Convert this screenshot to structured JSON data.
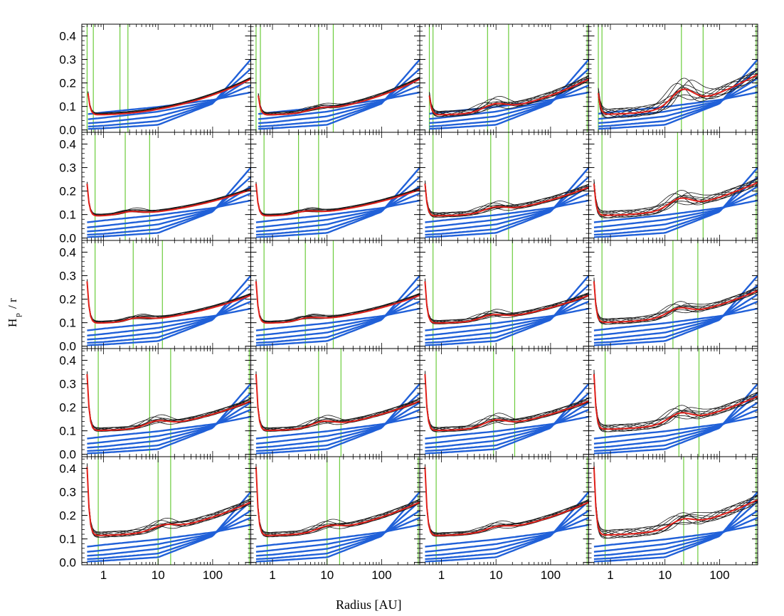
{
  "chart_data": {
    "type": "line",
    "layout": "5x4 grid of panels with shared axes",
    "xlabel": "Radius [AU]",
    "ylabel": {
      "main": "H",
      "sub": "p",
      "rest": " / r"
    },
    "xscale": "log",
    "xlim": [
      0.4,
      500
    ],
    "ylim": [
      -0.01,
      0.45
    ],
    "xticks": [
      1,
      10,
      100
    ],
    "xticklabels": [
      "1",
      "10",
      "100"
    ],
    "yticks": [
      0.0,
      0.1,
      0.2,
      0.3,
      0.4
    ],
    "yticklabels": [
      "0.0",
      "0.1",
      "0.2",
      "0.3",
      "0.4"
    ],
    "series_colors": {
      "models": "#1a1a1a",
      "mean": "#e0201a",
      "reference": "#2060d8",
      "markers": "#6ccc3c"
    },
    "reference_curves": [
      {
        "name": "ref1",
        "r": [
          0.5,
          1,
          10,
          100,
          500
        ],
        "h": [
          0.067,
          0.075,
          0.098,
          0.128,
          0.16
        ]
      },
      {
        "name": "ref2",
        "r": [
          0.5,
          1,
          10,
          100,
          500
        ],
        "h": [
          0.045,
          0.052,
          0.078,
          0.122,
          0.19
        ]
      },
      {
        "name": "ref3",
        "r": [
          0.5,
          1,
          10,
          100,
          500
        ],
        "h": [
          0.028,
          0.033,
          0.058,
          0.118,
          0.22
        ]
      },
      {
        "name": "ref4",
        "r": [
          0.5,
          1,
          10,
          100,
          500
        ],
        "h": [
          0.014,
          0.018,
          0.038,
          0.115,
          0.26
        ]
      },
      {
        "name": "ref5",
        "r": [
          0.5,
          1,
          10,
          100,
          500
        ],
        "h": [
          0.004,
          0.007,
          0.022,
          0.112,
          0.3
        ]
      }
    ],
    "panels": [
      {
        "row": 1,
        "col": 1,
        "inner": 0.52,
        "peak": 0.16,
        "base": 0.068,
        "bump_r": 0,
        "bump_h": 0,
        "spread": 0.004,
        "outer": 0.22,
        "markers": [
          0.5,
          0.65,
          2,
          2.8
        ]
      },
      {
        "row": 1,
        "col": 2,
        "inner": 0.55,
        "peak": 0.15,
        "base": 0.068,
        "bump_r": 7,
        "bump_h": 0.02,
        "spread": 0.006,
        "outer": 0.22,
        "markers": [
          0.5,
          0.6,
          7,
          13
        ]
      },
      {
        "row": 1,
        "col": 3,
        "inner": 0.6,
        "peak": 0.15,
        "base": 0.068,
        "bump_r": 9,
        "bump_h": 0.04,
        "spread": 0.012,
        "outer": 0.22,
        "markers": [
          0.6,
          0.7,
          7,
          17,
          470
        ]
      },
      {
        "row": 1,
        "col": 4,
        "inner": 0.6,
        "peak": 0.16,
        "base": 0.07,
        "bump_r": 20,
        "bump_h": 0.1,
        "spread": 0.02,
        "outer": 0.24,
        "markers": [
          0.6,
          0.7,
          20,
          50,
          470
        ]
      },
      {
        "row": 2,
        "col": 1,
        "inner": 0.5,
        "peak": 0.235,
        "base": 0.098,
        "bump_r": 3,
        "bump_h": 0.02,
        "spread": 0.004,
        "outer": 0.21,
        "markers": [
          0.7,
          2.5,
          7
        ]
      },
      {
        "row": 2,
        "col": 2,
        "inner": 0.5,
        "peak": 0.235,
        "base": 0.098,
        "bump_r": 4,
        "bump_h": 0.02,
        "spread": 0.004,
        "outer": 0.21,
        "markers": [
          0.7,
          3,
          7
        ]
      },
      {
        "row": 2,
        "col": 3,
        "inner": 0.5,
        "peak": 0.235,
        "base": 0.098,
        "bump_r": 9,
        "bump_h": 0.03,
        "spread": 0.01,
        "outer": 0.22,
        "markers": [
          0.7,
          8,
          17
        ]
      },
      {
        "row": 2,
        "col": 4,
        "inner": 0.5,
        "peak": 0.235,
        "base": 0.1,
        "bump_r": 18,
        "bump_h": 0.06,
        "spread": 0.015,
        "outer": 0.24,
        "markers": [
          0.7,
          17,
          50,
          470
        ]
      },
      {
        "row": 3,
        "col": 1,
        "inner": 0.5,
        "peak": 0.28,
        "base": 0.102,
        "bump_r": 4,
        "bump_h": 0.022,
        "spread": 0.005,
        "outer": 0.22,
        "markers": [
          0.7,
          3.5,
          12
        ]
      },
      {
        "row": 3,
        "col": 2,
        "inner": 0.5,
        "peak": 0.28,
        "base": 0.102,
        "bump_r": 4.5,
        "bump_h": 0.022,
        "spread": 0.005,
        "outer": 0.22,
        "markers": [
          0.7,
          4,
          13
        ]
      },
      {
        "row": 3,
        "col": 3,
        "inner": 0.5,
        "peak": 0.28,
        "base": 0.102,
        "bump_r": 8,
        "bump_h": 0.03,
        "spread": 0.008,
        "outer": 0.22,
        "markers": [
          0.7,
          8,
          20
        ]
      },
      {
        "row": 3,
        "col": 4,
        "inner": 0.5,
        "peak": 0.28,
        "base": 0.105,
        "bump_r": 17,
        "bump_h": 0.045,
        "spread": 0.012,
        "outer": 0.24,
        "markers": [
          0.7,
          14,
          40
        ]
      },
      {
        "row": 4,
        "col": 1,
        "inner": 0.5,
        "peak": 0.345,
        "base": 0.105,
        "bump_r": 9,
        "bump_h": 0.035,
        "spread": 0.008,
        "outer": 0.23,
        "markers": [
          0.8,
          7,
          17,
          470
        ]
      },
      {
        "row": 4,
        "col": 2,
        "inner": 0.5,
        "peak": 0.345,
        "base": 0.105,
        "bump_r": 8,
        "bump_h": 0.035,
        "spread": 0.008,
        "outer": 0.23,
        "markers": [
          0.8,
          7,
          18
        ]
      },
      {
        "row": 4,
        "col": 3,
        "inner": 0.5,
        "peak": 0.345,
        "base": 0.105,
        "bump_r": 9,
        "bump_h": 0.04,
        "spread": 0.01,
        "outer": 0.23,
        "markers": [
          0.8,
          9,
          22
        ]
      },
      {
        "row": 4,
        "col": 4,
        "inner": 0.5,
        "peak": 0.345,
        "base": 0.11,
        "bump_r": 18,
        "bump_h": 0.055,
        "spread": 0.015,
        "outer": 0.25,
        "markers": [
          0.8,
          18,
          42
        ]
      },
      {
        "row": 5,
        "col": 1,
        "inner": 0.5,
        "peak": 0.41,
        "base": 0.118,
        "bump_r": 12,
        "bump_h": 0.03,
        "spread": 0.012,
        "outer": 0.26,
        "markers": [
          0.8,
          10,
          17,
          470
        ]
      },
      {
        "row": 5,
        "col": 2,
        "inner": 0.5,
        "peak": 0.41,
        "base": 0.118,
        "bump_r": 10,
        "bump_h": 0.03,
        "spread": 0.01,
        "outer": 0.26,
        "markers": [
          0.8,
          10,
          17,
          470
        ]
      },
      {
        "row": 5,
        "col": 3,
        "inner": 0.5,
        "peak": 0.41,
        "base": 0.118,
        "bump_r": 10,
        "bump_h": 0.025,
        "spread": 0.008,
        "outer": 0.26,
        "markers": [
          0.8,
          470
        ]
      },
      {
        "row": 5,
        "col": 4,
        "inner": 0.5,
        "peak": 0.41,
        "base": 0.12,
        "bump_r": 20,
        "bump_h": 0.045,
        "spread": 0.018,
        "outer": 0.27,
        "markers": [
          0.8,
          22,
          40,
          470
        ]
      }
    ]
  }
}
